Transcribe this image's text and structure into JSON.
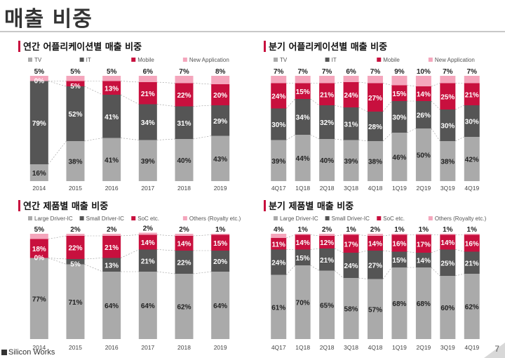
{
  "page": {
    "title": "매출 비중",
    "brand": "Silicon Works",
    "page_number": "7"
  },
  "colors": {
    "s0": "#aaaaaa",
    "s1": "#555555",
    "s2": "#c8103e",
    "s3": "#f4a6bc"
  },
  "chart_data": [
    {
      "type": "bar",
      "stacked": true,
      "normalized": true,
      "title": "연간 어플리케이션별 매출 비중",
      "categories": [
        "2014",
        "2015",
        "2016",
        "2017",
        "2018",
        "2019"
      ],
      "series": [
        {
          "name": "TV",
          "values": [
            16,
            38,
            41,
            39,
            40,
            43
          ]
        },
        {
          "name": "IT",
          "values": [
            79,
            52,
            41,
            34,
            31,
            29
          ]
        },
        {
          "name": "Mobile",
          "values": [
            0,
            5,
            13,
            21,
            22,
            20
          ]
        },
        {
          "name": "New Application",
          "values": [
            5,
            5,
            5,
            6,
            7,
            8
          ]
        }
      ]
    },
    {
      "type": "bar",
      "stacked": true,
      "normalized": true,
      "title": "분기 어플리케이션별 매출 비중",
      "categories": [
        "4Q17",
        "1Q18",
        "2Q18",
        "3Q18",
        "4Q18",
        "1Q19",
        "2Q19",
        "3Q19",
        "4Q19"
      ],
      "series": [
        {
          "name": "TV",
          "values": [
            39,
            44,
            40,
            39,
            38,
            46,
            50,
            38,
            42
          ]
        },
        {
          "name": "IT",
          "values": [
            30,
            34,
            32,
            31,
            28,
            30,
            26,
            30,
            30
          ]
        },
        {
          "name": "Mobile",
          "values": [
            24,
            15,
            21,
            24,
            27,
            15,
            14,
            25,
            21
          ]
        },
        {
          "name": "New Application",
          "values": [
            7,
            7,
            7,
            6,
            7,
            9,
            10,
            7,
            7
          ]
        }
      ]
    },
    {
      "type": "bar",
      "stacked": true,
      "normalized": true,
      "title": "연간 제품별 매출 비중",
      "categories": [
        "2014",
        "2015",
        "2016",
        "2017",
        "2018",
        "2019"
      ],
      "series": [
        {
          "name": "Large Driver-IC",
          "values": [
            77,
            71,
            64,
            64,
            62,
            64
          ]
        },
        {
          "name": "Small Driver-IC",
          "values": [
            0,
            5,
            13,
            21,
            22,
            20
          ]
        },
        {
          "name": "SoC etc.",
          "values": [
            18,
            22,
            21,
            14,
            14,
            15
          ]
        },
        {
          "name": "Others (Royalty etc.)",
          "values": [
            5,
            2,
            2,
            2,
            2,
            1
          ]
        }
      ]
    },
    {
      "type": "bar",
      "stacked": true,
      "normalized": true,
      "title": "분기 제품별 매출 비중",
      "categories": [
        "4Q17",
        "1Q18",
        "2Q18",
        "3Q18",
        "4Q18",
        "1Q19",
        "2Q19",
        "3Q19",
        "4Q19"
      ],
      "series": [
        {
          "name": "Large Driver-IC",
          "values": [
            61,
            70,
            65,
            58,
            57,
            68,
            68,
            60,
            62
          ]
        },
        {
          "name": "Small Driver-IC",
          "values": [
            24,
            15,
            21,
            24,
            27,
            15,
            14,
            25,
            21
          ]
        },
        {
          "name": "SoC etc.",
          "values": [
            11,
            14,
            12,
            17,
            14,
            16,
            17,
            14,
            16
          ]
        },
        {
          "name": "Others (Royalty etc.)",
          "values": [
            4,
            1,
            2,
            1,
            2,
            1,
            1,
            1,
            1
          ]
        }
      ]
    }
  ]
}
